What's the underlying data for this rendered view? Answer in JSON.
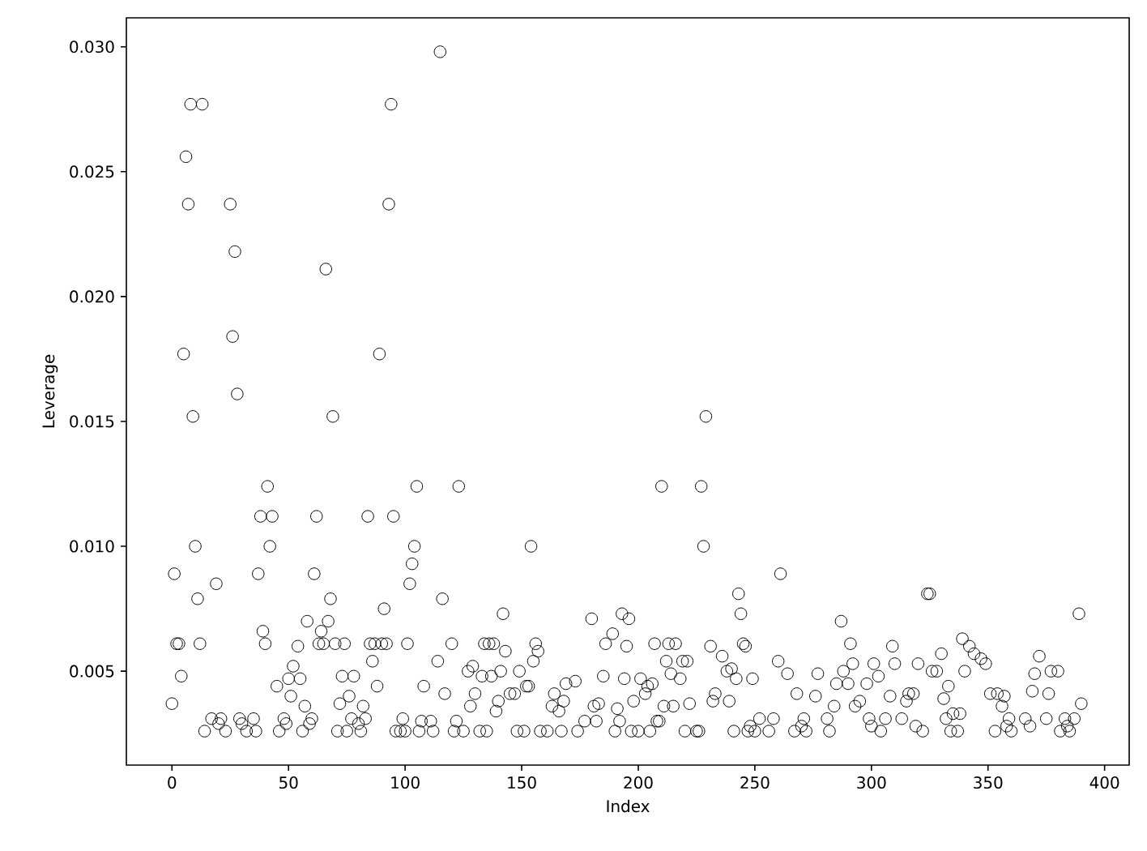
{
  "chart_data": {
    "type": "scatter",
    "xlabel": "Index",
    "ylabel": "Leverage",
    "marker": "circle",
    "xlim": [
      -19.55,
      410.55
    ],
    "ylim": [
      0.00124,
      0.03116
    ],
    "xticks": [
      0,
      50,
      100,
      150,
      200,
      250,
      300,
      350,
      400
    ],
    "yticks": [
      {
        "value": 0.005,
        "label": "0.005"
      },
      {
        "value": 0.01,
        "label": "0.010"
      },
      {
        "value": 0.015,
        "label": "0.015"
      },
      {
        "value": 0.02,
        "label": "0.020"
      },
      {
        "value": 0.025,
        "label": "0.025"
      },
      {
        "value": 0.03,
        "label": "0.030"
      }
    ],
    "series": [
      {
        "color": "#000000",
        "x": [
          115,
          8,
          13,
          94,
          6,
          7,
          25,
          93,
          27,
          66,
          26,
          5,
          89,
          28,
          9,
          69,
          229,
          41,
          38,
          43,
          62,
          84,
          95,
          10,
          42,
          104,
          1,
          37,
          61,
          19,
          102,
          11,
          68,
          91,
          58,
          67,
          39,
          64,
          2,
          3,
          12,
          40,
          63,
          65,
          70,
          74,
          85,
          87,
          90,
          92,
          101,
          54,
          86,
          52,
          4,
          73,
          78,
          50,
          55,
          45,
          88,
          51,
          76,
          0,
          72,
          57,
          82,
          17,
          21,
          29,
          35,
          48,
          60,
          77,
          83,
          99,
          14,
          23,
          32,
          36,
          46,
          56,
          71,
          75,
          81,
          96,
          98,
          20,
          30,
          49,
          59,
          80,
          105,
          123,
          210,
          227,
          154,
          228,
          103,
          116,
          142,
          180,
          193,
          196,
          243,
          244,
          120,
          134,
          136,
          138,
          156,
          207,
          213,
          216,
          245,
          143,
          157,
          195,
          189,
          186,
          231,
          114,
          155,
          212,
          219,
          221,
          236,
          129,
          127,
          133,
          137,
          141,
          149,
          185,
          214,
          194,
          238,
          242,
          108,
          117,
          130,
          145,
          147,
          152,
          153,
          164,
          169,
          173,
          201,
          204,
          206,
          203,
          198,
          218,
          233,
          128,
          140,
          139,
          163,
          168,
          166,
          211,
          215,
          222,
          181,
          183,
          191,
          239,
          232,
          107,
          111,
          122,
          177,
          182,
          192,
          208,
          209,
          100,
          106,
          112,
          121,
          125,
          132,
          135,
          148,
          151,
          158,
          161,
          167,
          174,
          190,
          197,
          200,
          205,
          220,
          225,
          226,
          241,
          261,
          324,
          325,
          389,
          246,
          287,
          291,
          309,
          339,
          342,
          344,
          347,
          349,
          330,
          372,
          260,
          264,
          277,
          288,
          292,
          301,
          310,
          320,
          326,
          328,
          370,
          377,
          380,
          340,
          240,
          249,
          268,
          276,
          285,
          290,
          298,
          303,
          308,
          316,
          318,
          331,
          333,
          351,
          354,
          357,
          369,
          376,
          284,
          293,
          295,
          315,
          356,
          375,
          390,
          335,
          338,
          252,
          258,
          271,
          281,
          299,
          306,
          313,
          332,
          359,
          366,
          383,
          387,
          247,
          250,
          256,
          267,
          272,
          282,
          304,
          322,
          334,
          337,
          353,
          360,
          381,
          385,
          248,
          270,
          300,
          319,
          358,
          368,
          384
        ],
        "values": [
          0.0298,
          0.0277,
          0.0277,
          0.0277,
          0.0256,
          0.0237,
          0.0237,
          0.0237,
          0.0218,
          0.0211,
          0.0184,
          0.0177,
          0.0177,
          0.0161,
          0.0152,
          0.0152,
          0.0152,
          0.0124,
          0.0112,
          0.0112,
          0.0112,
          0.0112,
          0.0112,
          0.01,
          0.01,
          0.01,
          0.0089,
          0.0089,
          0.0089,
          0.0085,
          0.0085,
          0.0079,
          0.0079,
          0.0075,
          0.007,
          0.007,
          0.0066,
          0.0066,
          0.0061,
          0.0061,
          0.0061,
          0.0061,
          0.0061,
          0.0061,
          0.0061,
          0.0061,
          0.0061,
          0.0061,
          0.0061,
          0.0061,
          0.0061,
          0.006,
          0.0054,
          0.0052,
          0.0048,
          0.0048,
          0.0048,
          0.0047,
          0.0047,
          0.0044,
          0.0044,
          0.004,
          0.004,
          0.0037,
          0.0037,
          0.0036,
          0.0036,
          0.0031,
          0.0031,
          0.0031,
          0.0031,
          0.0031,
          0.0031,
          0.0031,
          0.0031,
          0.0031,
          0.0026,
          0.0026,
          0.0026,
          0.0026,
          0.0026,
          0.0026,
          0.0026,
          0.0026,
          0.0026,
          0.0026,
          0.0026,
          0.0029,
          0.0029,
          0.0029,
          0.0029,
          0.0029,
          0.0124,
          0.0124,
          0.0124,
          0.0124,
          0.01,
          0.01,
          0.0093,
          0.0079,
          0.0073,
          0.0071,
          0.0073,
          0.0071,
          0.0081,
          0.0073,
          0.0061,
          0.0061,
          0.0061,
          0.0061,
          0.0061,
          0.0061,
          0.0061,
          0.0061,
          0.0061,
          0.0058,
          0.0058,
          0.006,
          0.0065,
          0.0061,
          0.006,
          0.0054,
          0.0054,
          0.0054,
          0.0054,
          0.0054,
          0.0056,
          0.0052,
          0.005,
          0.0048,
          0.0048,
          0.005,
          0.005,
          0.0048,
          0.0049,
          0.0047,
          0.005,
          0.0047,
          0.0044,
          0.0041,
          0.0041,
          0.0041,
          0.0041,
          0.0044,
          0.0044,
          0.0041,
          0.0045,
          0.0046,
          0.0047,
          0.0044,
          0.0045,
          0.0041,
          0.0038,
          0.0047,
          0.0041,
          0.0036,
          0.0038,
          0.0034,
          0.0036,
          0.0038,
          0.0034,
          0.0036,
          0.0036,
          0.0037,
          0.0036,
          0.0037,
          0.0035,
          0.0038,
          0.0038,
          0.003,
          0.003,
          0.003,
          0.003,
          0.003,
          0.003,
          0.003,
          0.003,
          0.0026,
          0.0026,
          0.0026,
          0.0026,
          0.0026,
          0.0026,
          0.0026,
          0.0026,
          0.0026,
          0.0026,
          0.0026,
          0.0026,
          0.0026,
          0.0026,
          0.0026,
          0.0026,
          0.0026,
          0.0026,
          0.0026,
          0.0026,
          0.0026,
          0.0089,
          0.0081,
          0.0081,
          0.0073,
          0.006,
          0.007,
          0.0061,
          0.006,
          0.0063,
          0.006,
          0.0057,
          0.0055,
          0.0053,
          0.0057,
          0.0056,
          0.0054,
          0.0049,
          0.0049,
          0.005,
          0.0053,
          0.0053,
          0.0053,
          0.0053,
          0.005,
          0.005,
          0.0049,
          0.005,
          0.005,
          0.005,
          0.0051,
          0.0047,
          0.0041,
          0.004,
          0.0045,
          0.0045,
          0.0045,
          0.0048,
          0.004,
          0.0041,
          0.0041,
          0.0039,
          0.0044,
          0.0041,
          0.0041,
          0.004,
          0.0042,
          0.0041,
          0.0036,
          0.0036,
          0.0038,
          0.0038,
          0.0036,
          0.0031,
          0.0037,
          0.0033,
          0.0033,
          0.0031,
          0.0031,
          0.0031,
          0.0031,
          0.0031,
          0.0031,
          0.0031,
          0.0031,
          0.0031,
          0.0031,
          0.0031,
          0.0031,
          0.0026,
          0.0026,
          0.0026,
          0.0026,
          0.0026,
          0.0026,
          0.0026,
          0.0026,
          0.0026,
          0.0026,
          0.0026,
          0.0026,
          0.0026,
          0.0026,
          0.0028,
          0.0028,
          0.0028,
          0.0028,
          0.0028,
          0.0028,
          0.0028
        ]
      }
    ]
  }
}
